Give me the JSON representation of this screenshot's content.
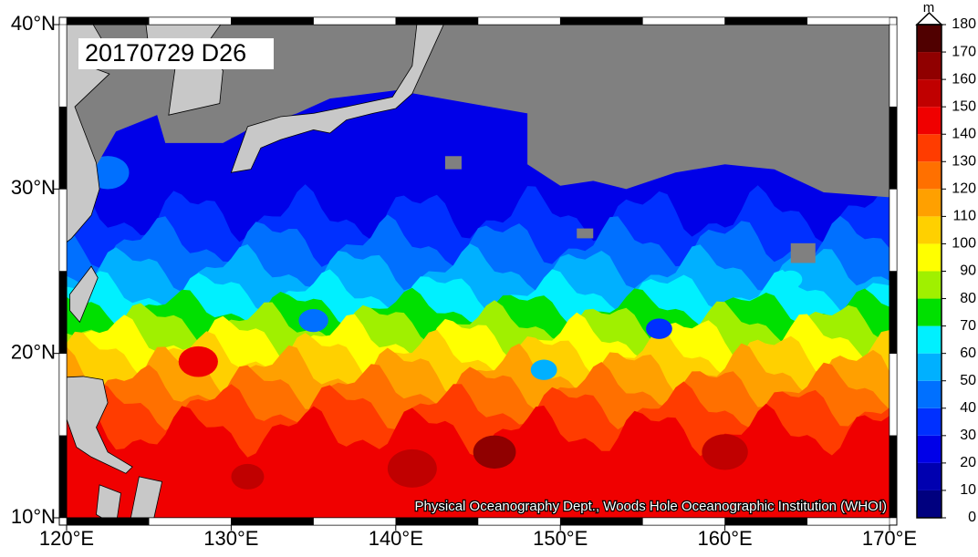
{
  "chart_data": {
    "type": "map",
    "title": "20170729 D26",
    "credit": "Physical Oceanography Dept., Woods Hole Oceanographic Institution (WHOI)",
    "xlim": [
      120,
      170
    ],
    "ylim": [
      10,
      40
    ],
    "xticks": [
      {
        "value": 120,
        "label": "120°E"
      },
      {
        "value": 130,
        "label": "130°E"
      },
      {
        "value": 140,
        "label": "140°E"
      },
      {
        "value": 150,
        "label": "150°E"
      },
      {
        "value": 160,
        "label": "160°E"
      },
      {
        "value": 170,
        "label": "170°E"
      }
    ],
    "yticks": [
      {
        "value": 10,
        "label": "10°N"
      },
      {
        "value": 20,
        "label": "20°N"
      },
      {
        "value": 30,
        "label": "30°N"
      },
      {
        "value": 40,
        "label": "40°N"
      }
    ],
    "colorbar": {
      "label": "m",
      "ticks": [
        0,
        10,
        20,
        30,
        40,
        50,
        60,
        70,
        80,
        90,
        100,
        110,
        120,
        130,
        140,
        150,
        160,
        170,
        180
      ],
      "colors": [
        "#00007f",
        "#0000b0",
        "#0000e8",
        "#0030ff",
        "#0070ff",
        "#00b0ff",
        "#00f0ff",
        "#00e000",
        "#a0f000",
        "#ffff00",
        "#ffd000",
        "#ffa000",
        "#ff7000",
        "#ff3c00",
        "#f00000",
        "#c00000",
        "#900000",
        "#500000"
      ]
    }
  }
}
